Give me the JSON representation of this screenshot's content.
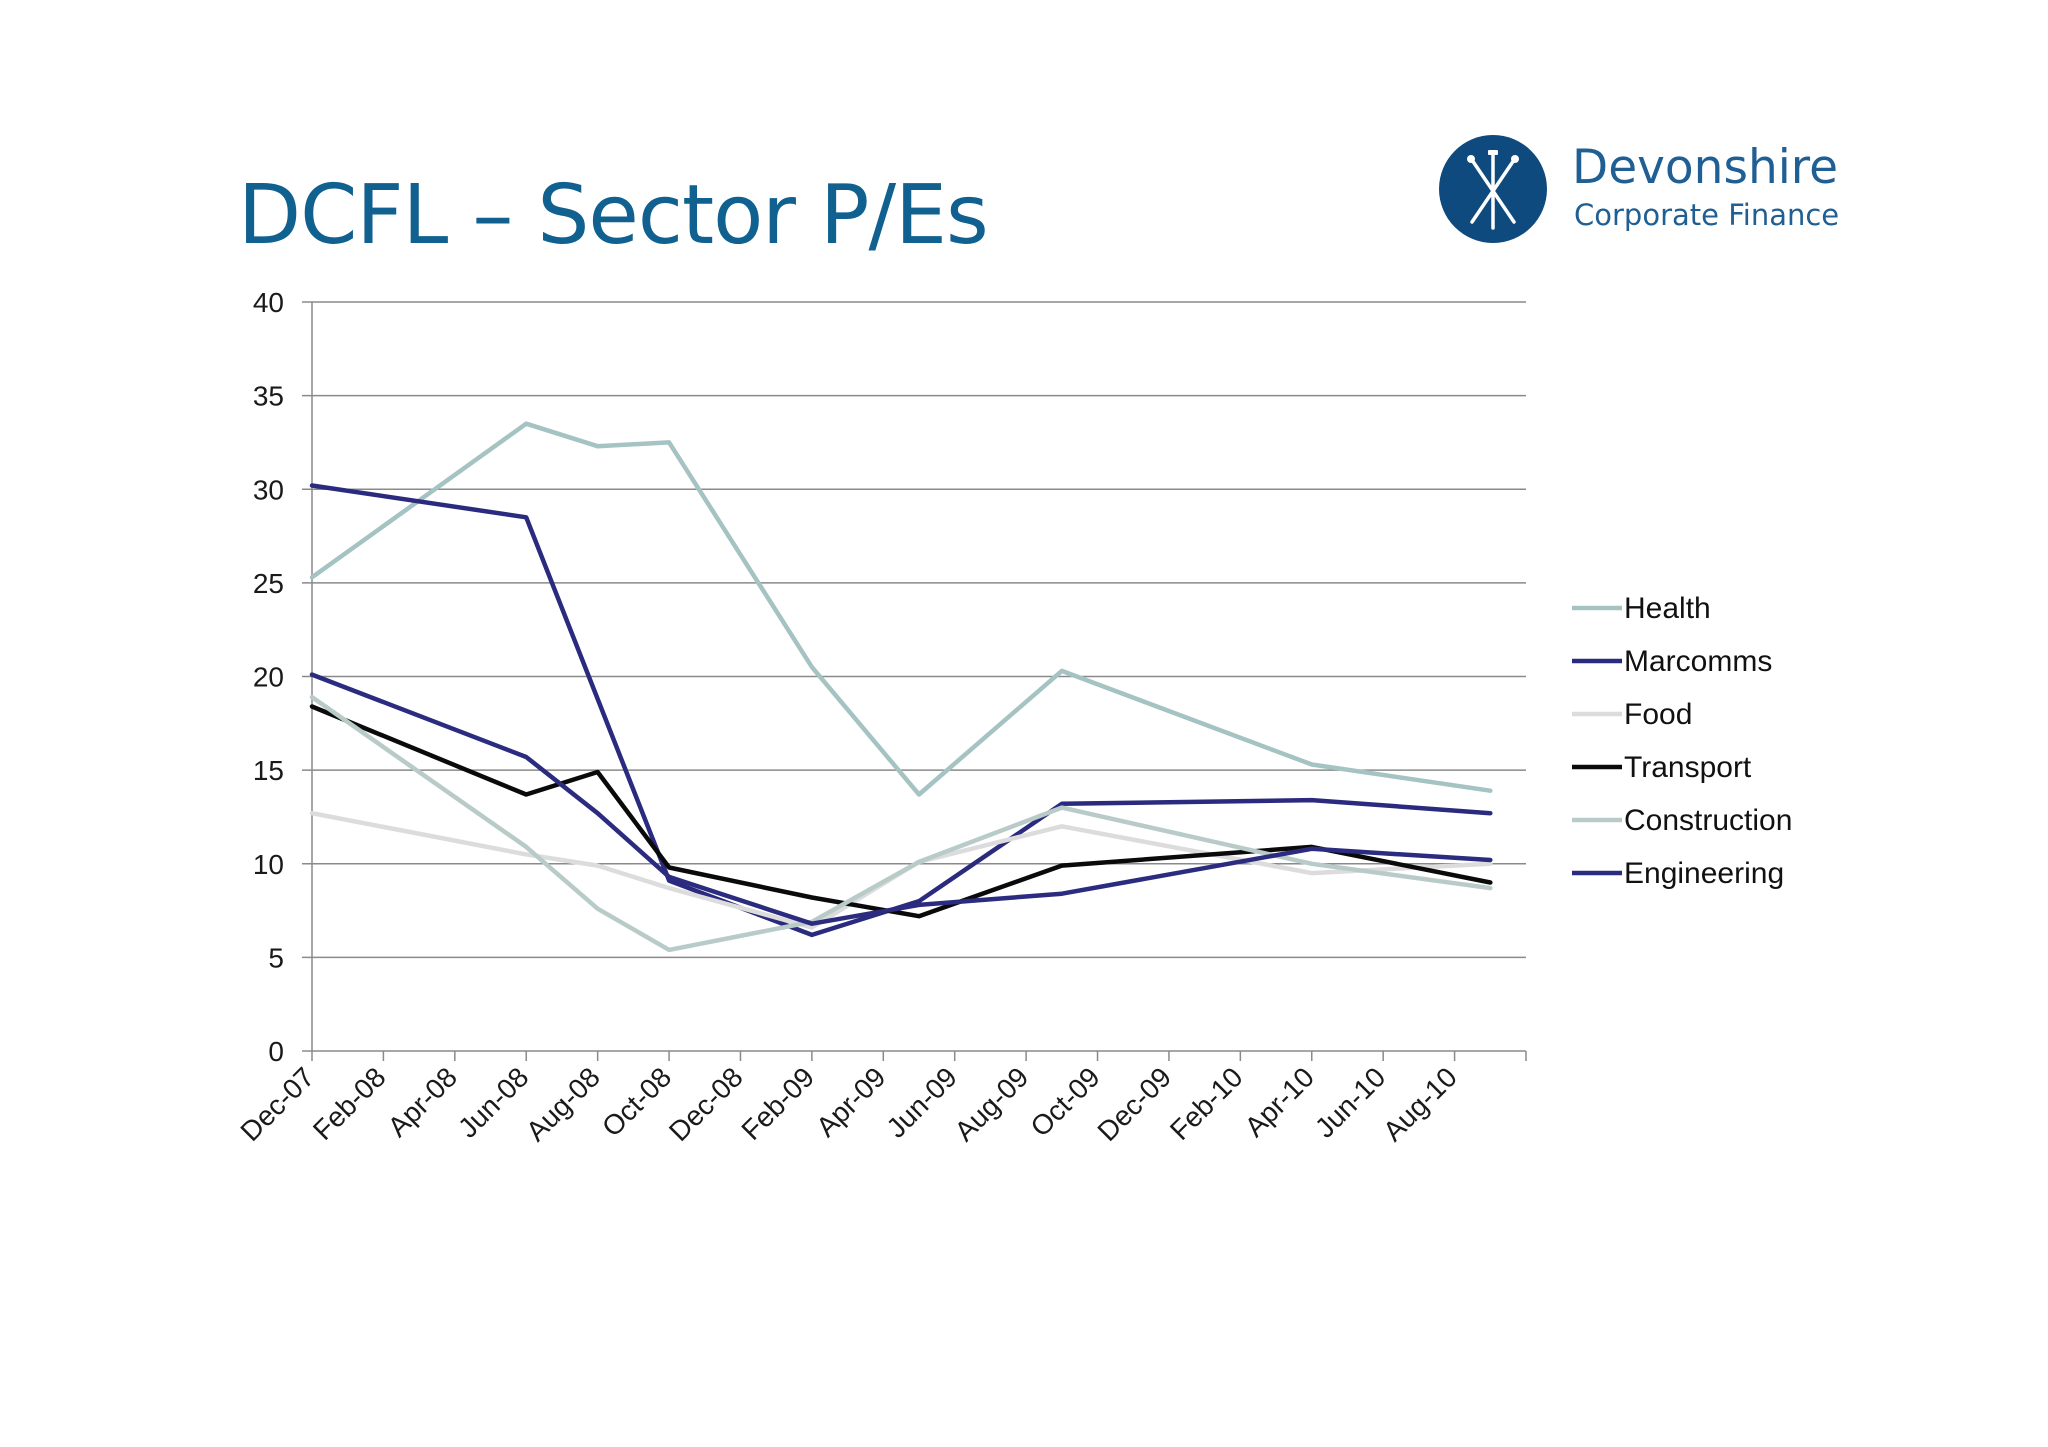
{
  "page": {
    "title": "DCFL – Sector P/Es"
  },
  "logo": {
    "name": "Devonshire",
    "tagline": "Corporate Finance",
    "icon": "crossed-nails-icon",
    "color": "#0f4a7e"
  },
  "chart_data": {
    "type": "line",
    "title": "",
    "xlabel": "",
    "ylabel": "",
    "ylim": [
      0,
      40
    ],
    "yticks": [
      0,
      5,
      10,
      15,
      20,
      25,
      30,
      35,
      40
    ],
    "grid": true,
    "legend_position": "right",
    "categories": [
      "Dec-07",
      "Feb-08",
      "Apr-08",
      "Jun-08",
      "Aug-08",
      "Oct-08",
      "Dec-08",
      "Feb-09",
      "Apr-09",
      "Jun-09",
      "Aug-09",
      "Oct-09",
      "Dec-09",
      "Feb-10",
      "Apr-10",
      "Jun-10",
      "Aug-10"
    ],
    "series": [
      {
        "name": "Health",
        "color": "#a5c3c2",
        "points": [
          [
            "Dec-07",
            25.3
          ],
          [
            "Jun-08",
            33.5
          ],
          [
            "Aug-08",
            32.3
          ],
          [
            "Oct-08",
            32.5
          ],
          [
            "Feb-09",
            20.5
          ],
          [
            "May-09",
            13.7
          ],
          [
            "Sep-09",
            20.3
          ],
          [
            "Apr-10",
            15.3
          ],
          [
            "Sep-10",
            13.9
          ]
        ]
      },
      {
        "name": "Marcomms",
        "color": "#2a2a7e",
        "points": [
          [
            "Dec-07",
            30.2
          ],
          [
            "Jun-08",
            28.5
          ],
          [
            "Oct-08",
            9.1
          ],
          [
            "Feb-09",
            6.2
          ],
          [
            "May-09",
            8.0
          ],
          [
            "Sep-09",
            13.2
          ],
          [
            "Apr-10",
            13.4
          ],
          [
            "Sep-10",
            12.7
          ]
        ]
      },
      {
        "name": "Food",
        "color": "#dcdcdc",
        "points": [
          [
            "Dec-07",
            12.7
          ],
          [
            "Jun-08",
            10.5
          ],
          [
            "Aug-08",
            9.9
          ],
          [
            "Oct-08",
            8.7
          ],
          [
            "Feb-09",
            6.6
          ],
          [
            "May-09",
            10.1
          ],
          [
            "Sep-09",
            12.0
          ],
          [
            "Apr-10",
            9.5
          ],
          [
            "Sep-10",
            10.0
          ]
        ]
      },
      {
        "name": "Transport",
        "color": "#0a0a0a",
        "points": [
          [
            "Dec-07",
            18.4
          ],
          [
            "Jun-08",
            13.7
          ],
          [
            "Aug-08",
            14.9
          ],
          [
            "Oct-08",
            9.8
          ],
          [
            "Feb-09",
            8.2
          ],
          [
            "May-09",
            7.2
          ],
          [
            "Sep-09",
            9.9
          ],
          [
            "Apr-10",
            10.9
          ],
          [
            "Sep-10",
            9.0
          ]
        ]
      },
      {
        "name": "Construction",
        "color": "#b9cbc8",
        "points": [
          [
            "Dec-07",
            18.9
          ],
          [
            "Jun-08",
            10.9
          ],
          [
            "Aug-08",
            7.6
          ],
          [
            "Oct-08",
            5.4
          ],
          [
            "Feb-09",
            6.9
          ],
          [
            "May-09",
            10.1
          ],
          [
            "Sep-09",
            13.0
          ],
          [
            "Apr-10",
            10.0
          ],
          [
            "Sep-10",
            8.7
          ]
        ]
      },
      {
        "name": "Engineering",
        "color": "#2b2b80",
        "points": [
          [
            "Dec-07",
            20.1
          ],
          [
            "Jun-08",
            15.7
          ],
          [
            "Aug-08",
            12.7
          ],
          [
            "Oct-08",
            9.3
          ],
          [
            "Feb-09",
            6.8
          ],
          [
            "May-09",
            7.8
          ],
          [
            "Sep-09",
            8.4
          ],
          [
            "Apr-10",
            10.8
          ],
          [
            "Sep-10",
            10.2
          ]
        ]
      }
    ]
  }
}
